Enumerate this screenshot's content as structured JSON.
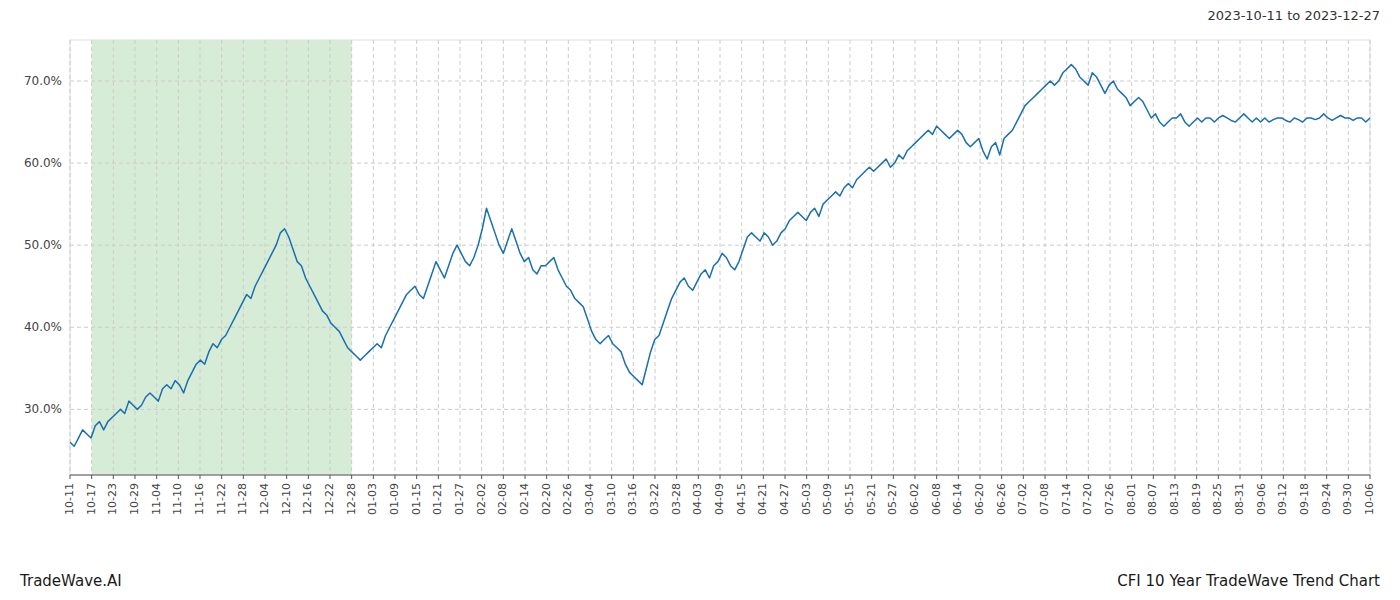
{
  "chart_data": {
    "type": "line",
    "title": "CFI 10 Year TradeWave Trend Chart",
    "subtitle": "2023-10-11 to 2023-12-27",
    "annotations": [
      "TradeWave.AI"
    ],
    "color": "#1a6faf",
    "grid": true,
    "shade": {
      "range": [
        1,
        13
      ],
      "color": "#d6ecd6"
    },
    "xlim": [
      0,
      60
    ],
    "xticks": [
      {
        "value": 0,
        "label": "10-11"
      },
      {
        "value": 1,
        "label": "10-17"
      },
      {
        "value": 2,
        "label": "10-23"
      },
      {
        "value": 3,
        "label": "10-29"
      },
      {
        "value": 4,
        "label": "11-04"
      },
      {
        "value": 5,
        "label": "11-10"
      },
      {
        "value": 6,
        "label": "11-16"
      },
      {
        "value": 7,
        "label": "11-22"
      },
      {
        "value": 8,
        "label": "11-28"
      },
      {
        "value": 9,
        "label": "12-04"
      },
      {
        "value": 10,
        "label": "12-10"
      },
      {
        "value": 11,
        "label": "12-16"
      },
      {
        "value": 12,
        "label": "12-22"
      },
      {
        "value": 13,
        "label": "12-28"
      },
      {
        "value": 14,
        "label": "01-03"
      },
      {
        "value": 15,
        "label": "01-09"
      },
      {
        "value": 16,
        "label": "01-15"
      },
      {
        "value": 17,
        "label": "01-21"
      },
      {
        "value": 18,
        "label": "01-27"
      },
      {
        "value": 19,
        "label": "02-02"
      },
      {
        "value": 20,
        "label": "02-08"
      },
      {
        "value": 21,
        "label": "02-14"
      },
      {
        "value": 22,
        "label": "02-20"
      },
      {
        "value": 23,
        "label": "02-26"
      },
      {
        "value": 24,
        "label": "03-04"
      },
      {
        "value": 25,
        "label": "03-10"
      },
      {
        "value": 26,
        "label": "03-16"
      },
      {
        "value": 27,
        "label": "03-22"
      },
      {
        "value": 28,
        "label": "03-28"
      },
      {
        "value": 29,
        "label": "04-03"
      },
      {
        "value": 30,
        "label": "04-09"
      },
      {
        "value": 31,
        "label": "04-15"
      },
      {
        "value": 32,
        "label": "04-21"
      },
      {
        "value": 33,
        "label": "04-27"
      },
      {
        "value": 34,
        "label": "05-03"
      },
      {
        "value": 35,
        "label": "05-09"
      },
      {
        "value": 36,
        "label": "05-15"
      },
      {
        "value": 37,
        "label": "05-21"
      },
      {
        "value": 38,
        "label": "05-27"
      },
      {
        "value": 39,
        "label": "06-02"
      },
      {
        "value": 40,
        "label": "06-08"
      },
      {
        "value": 41,
        "label": "06-14"
      },
      {
        "value": 42,
        "label": "06-20"
      },
      {
        "value": 43,
        "label": "06-26"
      },
      {
        "value": 44,
        "label": "07-02"
      },
      {
        "value": 45,
        "label": "07-08"
      },
      {
        "value": 46,
        "label": "07-14"
      },
      {
        "value": 47,
        "label": "07-20"
      },
      {
        "value": 48,
        "label": "07-26"
      },
      {
        "value": 49,
        "label": "08-01"
      },
      {
        "value": 50,
        "label": "08-07"
      },
      {
        "value": 51,
        "label": "08-13"
      },
      {
        "value": 52,
        "label": "08-19"
      },
      {
        "value": 53,
        "label": "08-25"
      },
      {
        "value": 54,
        "label": "08-31"
      },
      {
        "value": 55,
        "label": "09-06"
      },
      {
        "value": 56,
        "label": "09-12"
      },
      {
        "value": 57,
        "label": "09-18"
      },
      {
        "value": 58,
        "label": "09-24"
      },
      {
        "value": 59,
        "label": "09-30"
      },
      {
        "value": 60,
        "label": "10-06"
      }
    ],
    "ylim": [
      22,
      75
    ],
    "yticks": [
      {
        "value": 30.0,
        "label": "30.0%"
      },
      {
        "value": 40.0,
        "label": "40.0%"
      },
      {
        "value": 50.0,
        "label": "50.0%"
      },
      {
        "value": 60.0,
        "label": "60.0%"
      },
      {
        "value": 70.0,
        "label": "70.0%"
      }
    ],
    "values": [
      26.0,
      25.5,
      26.5,
      27.5,
      27.0,
      26.5,
      28.0,
      28.5,
      27.5,
      28.5,
      29.0,
      29.5,
      30.0,
      29.5,
      31.0,
      30.5,
      30.0,
      30.5,
      31.5,
      32.0,
      31.5,
      31.0,
      32.5,
      33.0,
      32.5,
      33.5,
      33.0,
      32.0,
      33.5,
      34.5,
      35.5,
      36.0,
      35.5,
      37.0,
      38.0,
      37.5,
      38.5,
      39.0,
      40.0,
      41.0,
      42.0,
      43.0,
      44.0,
      43.5,
      45.0,
      46.0,
      47.0,
      48.0,
      49.0,
      50.0,
      51.5,
      52.0,
      51.0,
      49.5,
      48.0,
      47.5,
      46.0,
      45.0,
      44.0,
      43.0,
      42.0,
      41.5,
      40.5,
      40.0,
      39.5,
      38.5,
      37.5,
      37.0,
      36.5,
      36.0,
      36.5,
      37.0,
      37.5,
      38.0,
      37.5,
      39.0,
      40.0,
      41.0,
      42.0,
      43.0,
      44.0,
      44.5,
      45.0,
      44.0,
      43.5,
      45.0,
      46.5,
      48.0,
      47.0,
      46.0,
      47.5,
      49.0,
      50.0,
      49.0,
      48.0,
      47.5,
      48.5,
      50.0,
      52.0,
      54.5,
      53.0,
      51.5,
      50.0,
      49.0,
      50.5,
      52.0,
      50.5,
      49.0,
      48.0,
      48.5,
      47.0,
      46.5,
      47.5,
      47.5,
      48.0,
      48.5,
      47.0,
      46.0,
      45.0,
      44.5,
      43.5,
      43.0,
      42.5,
      41.0,
      39.5,
      38.5,
      38.0,
      38.5,
      39.0,
      38.0,
      37.5,
      37.0,
      35.5,
      34.5,
      34.0,
      33.5,
      33.0,
      35.0,
      37.0,
      38.5,
      39.0,
      40.5,
      42.0,
      43.5,
      44.5,
      45.5,
      46.0,
      45.0,
      44.5,
      45.5,
      46.5,
      47.0,
      46.0,
      47.5,
      48.0,
      49.0,
      48.5,
      47.5,
      47.0,
      48.0,
      49.5,
      51.0,
      51.5,
      51.0,
      50.5,
      51.5,
      51.0,
      50.0,
      50.5,
      51.5,
      52.0,
      53.0,
      53.5,
      54.0,
      53.5,
      53.0,
      54.0,
      54.5,
      53.5,
      55.0,
      55.5,
      56.0,
      56.5,
      56.0,
      57.0,
      57.5,
      57.0,
      58.0,
      58.5,
      59.0,
      59.5,
      59.0,
      59.5,
      60.0,
      60.5,
      59.5,
      60.0,
      61.0,
      60.5,
      61.5,
      62.0,
      62.5,
      63.0,
      63.5,
      64.0,
      63.5,
      64.5,
      64.0,
      63.5,
      63.0,
      63.5,
      64.0,
      63.5,
      62.5,
      62.0,
      62.5,
      63.0,
      61.5,
      60.5,
      62.0,
      62.5,
      61.0,
      63.0,
      63.5,
      64.0,
      65.0,
      66.0,
      67.0,
      67.5,
      68.0,
      68.5,
      69.0,
      69.5,
      70.0,
      69.5,
      70.0,
      71.0,
      71.5,
      72.0,
      71.5,
      70.5,
      70.0,
      69.5,
      71.0,
      70.5,
      69.5,
      68.5,
      69.5,
      70.0,
      69.0,
      68.5,
      68.0,
      67.0,
      67.5,
      68.0,
      67.5,
      66.5,
      65.5,
      66.0,
      65.0,
      64.5,
      65.0,
      65.5,
      65.5,
      66.0,
      65.0,
      64.5,
      65.0,
      65.5,
      65.0,
      65.5,
      65.5,
      65.0,
      65.5,
      65.8,
      65.5,
      65.2,
      65.0,
      65.5,
      66.0,
      65.5,
      65.0,
      65.5,
      65.0,
      65.5,
      65.0,
      65.3,
      65.5,
      65.5,
      65.2,
      65.0,
      65.5,
      65.3,
      65.0,
      65.5,
      65.5,
      65.3,
      65.5,
      66.0,
      65.5,
      65.2,
      65.5,
      65.8,
      65.5,
      65.5,
      65.2,
      65.5,
      65.5,
      65.0,
      65.5
    ]
  }
}
